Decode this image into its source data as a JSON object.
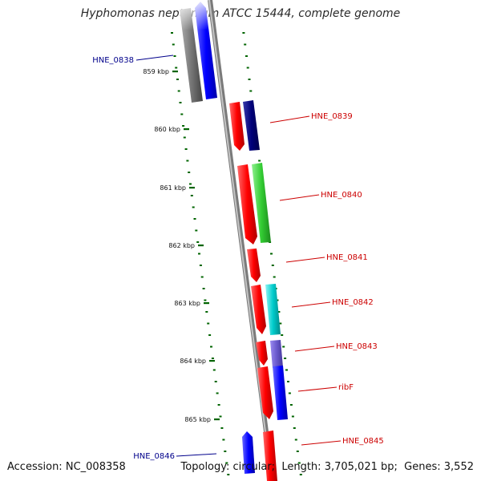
{
  "title": "Hyphomonas neptunium ATCC 15444, complete genome",
  "footer": {
    "accession_label": "Accession:",
    "accession": "NC_008358",
    "topology_label": "Topology:",
    "topology": "circular",
    "length_label": "Length:",
    "length": "3,705,021 bp",
    "genes_label": "Genes:",
    "genes": "3,552"
  },
  "kbp_markers": [
    "859 kbp",
    "860 kbp",
    "861 kbp",
    "862 kbp",
    "863 kbp",
    "864 kbp",
    "865 kbp"
  ],
  "gene_labels": [
    {
      "name": "HNE_0838",
      "strand": "minus"
    },
    {
      "name": "HNE_0839",
      "strand": "plus"
    },
    {
      "name": "HNE_0840",
      "strand": "plus"
    },
    {
      "name": "HNE_0841",
      "strand": "plus"
    },
    {
      "name": "HNE_0842",
      "strand": "plus"
    },
    {
      "name": "HNE_0843",
      "strand": "plus"
    },
    {
      "name": "ribF",
      "strand": "plus"
    },
    {
      "name": "HNE_0845",
      "strand": "plus"
    },
    {
      "name": "HNE_0846",
      "strand": "minus"
    }
  ],
  "colors": {
    "plus_label": "#cc0000",
    "minus_label": "#00008b",
    "kbp_tick": "#006400",
    "backbone": "#808080",
    "cds_forward": "#ff0000"
  }
}
